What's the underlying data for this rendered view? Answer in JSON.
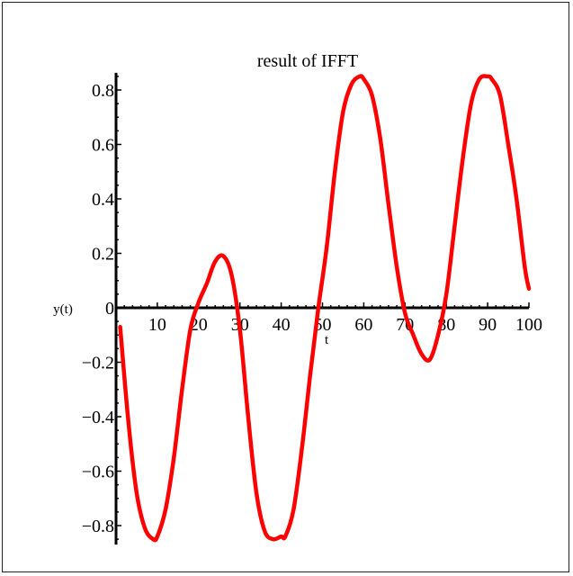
{
  "chart_data": {
    "type": "line",
    "title": "result of IFFT",
    "xlabel": "t",
    "ylabel": "y(t)",
    "xlim": [
      0,
      100
    ],
    "ylim": [
      -0.85,
      0.85
    ],
    "x_ticks": [
      10,
      20,
      30,
      40,
      50,
      60,
      70,
      80,
      90,
      100
    ],
    "x_tick_labels": [
      "10",
      "20",
      "30",
      "40",
      "50",
      "60",
      "70",
      "80",
      "90",
      "100"
    ],
    "y_ticks": [
      0.8,
      0.6,
      0.4,
      0.2,
      0,
      -0.2,
      -0.4,
      -0.6,
      -0.8
    ],
    "y_tick_labels": [
      "0.8",
      "0.6",
      "0.4",
      "0.2",
      "0",
      "−0.2",
      "−0.4",
      "−0.6",
      "−0.8"
    ],
    "grid": false,
    "series": [
      {
        "color": "#ff0000",
        "x": [
          1,
          3,
          5,
          7,
          9,
          10,
          12,
          14,
          16,
          18,
          20,
          22,
          24,
          26,
          28,
          30,
          32,
          34,
          36,
          38,
          40,
          41,
          43,
          45,
          47,
          49,
          51,
          53,
          55,
          57,
          59,
          60,
          62,
          64,
          66,
          68,
          70,
          72,
          74,
          76,
          78,
          80,
          82,
          84,
          86,
          88,
          90,
          91,
          93,
          95,
          97,
          99,
          100
        ],
        "y": [
          -0.07,
          -0.42,
          -0.68,
          -0.81,
          -0.85,
          -0.84,
          -0.74,
          -0.55,
          -0.3,
          -0.08,
          0.02,
          0.09,
          0.17,
          0.19,
          0.12,
          -0.08,
          -0.4,
          -0.68,
          -0.82,
          -0.85,
          -0.84,
          -0.84,
          -0.74,
          -0.52,
          -0.25,
          0.0,
          0.22,
          0.5,
          0.72,
          0.82,
          0.85,
          0.84,
          0.78,
          0.62,
          0.38,
          0.15,
          -0.02,
          -0.1,
          -0.17,
          -0.19,
          -0.1,
          0.05,
          0.3,
          0.55,
          0.75,
          0.84,
          0.85,
          0.84,
          0.78,
          0.6,
          0.4,
          0.15,
          0.07
        ]
      }
    ]
  }
}
